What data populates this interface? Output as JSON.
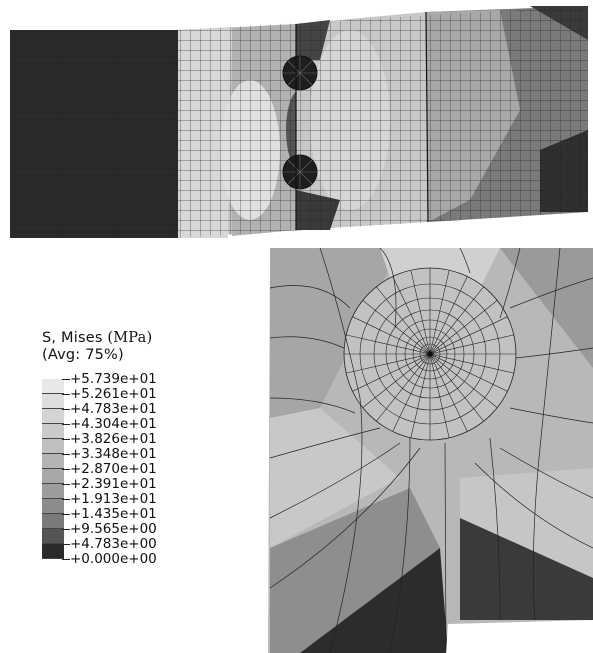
{
  "legend": {
    "title_line1": "S, Mises ",
    "title_unit": "(MPa)",
    "title_line2": "(Avg: 75%)",
    "values": [
      "+5.739e+01",
      "+5.261e+01",
      "+4.783e+01",
      "+4.304e+01",
      "+3.826e+01",
      "+3.348e+01",
      "+2.870e+01",
      "+2.391e+01",
      "+1.913e+01",
      "+1.435e+01",
      "+9.565e+00",
      "+4.783e+00",
      "+0.000e+00"
    ],
    "band_colors": [
      "#e8e8e8",
      "#dedede",
      "#d4d4d4",
      "#cacaca",
      "#c0c0c0",
      "#b4b4b4",
      "#a8a8a8",
      "#9c9c9c",
      "#8c8c8c",
      "#7a7a7a",
      "#555555",
      "#2a2a2a"
    ]
  }
}
